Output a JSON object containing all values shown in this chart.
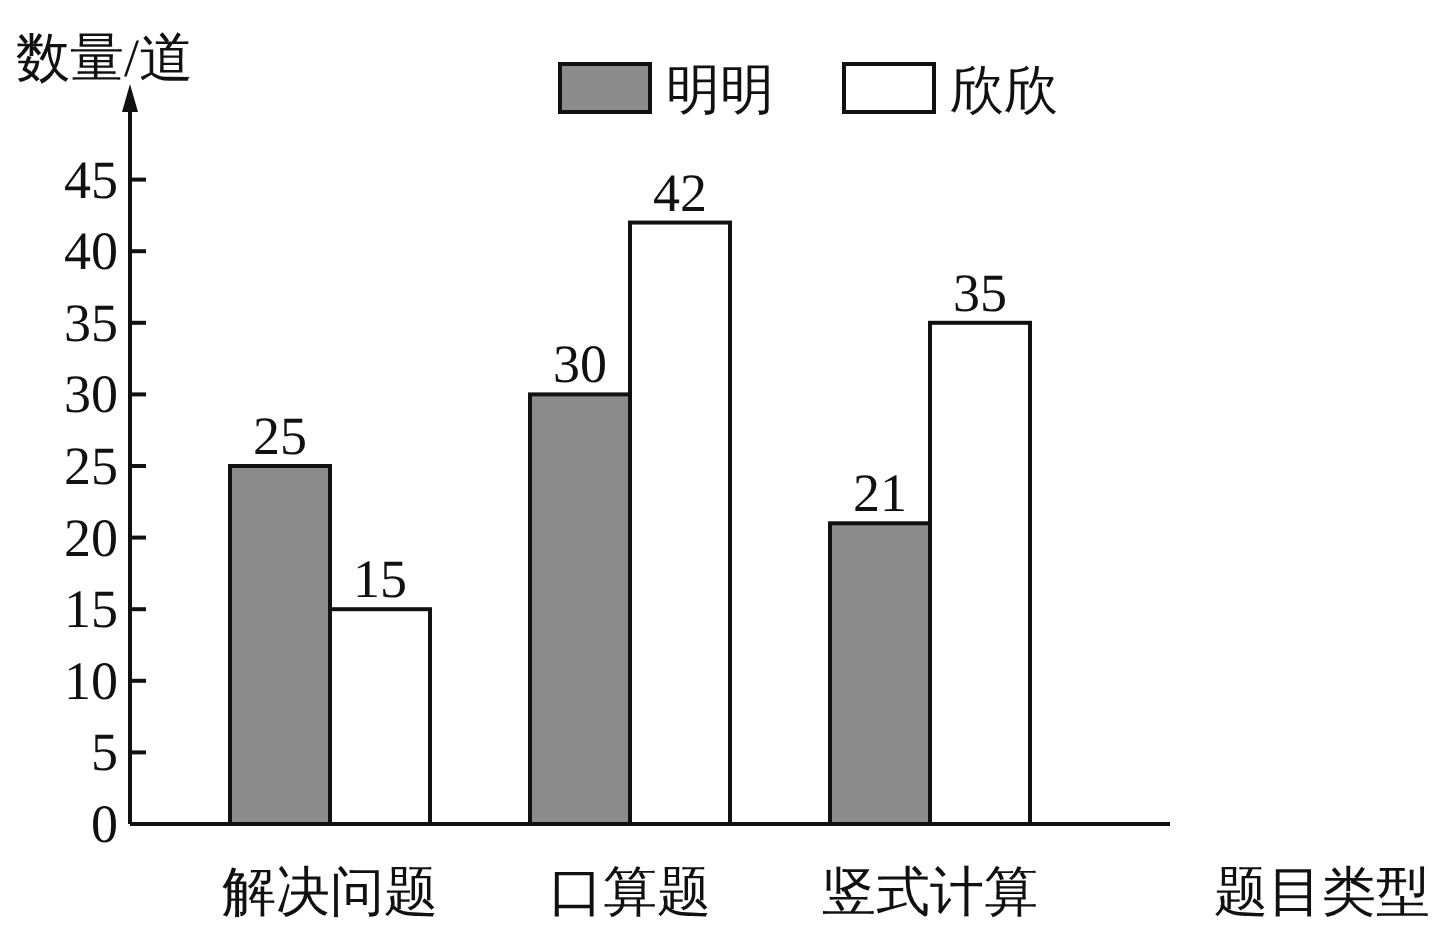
{
  "chart_data": {
    "type": "bar",
    "ylabel": "数量/道",
    "xlabel": "题目类型",
    "categories": [
      "解决问题",
      "口算题",
      "竖式计算"
    ],
    "series": [
      {
        "name": "明明",
        "color": "#8c8c8c",
        "values": [
          25,
          30,
          21
        ]
      },
      {
        "name": "欣欣",
        "color": "#ffffff",
        "values": [
          15,
          42,
          35
        ]
      }
    ],
    "ylim": [
      0,
      50
    ],
    "yticks": [
      0,
      5,
      10,
      15,
      20,
      25,
      30,
      35,
      40,
      45
    ],
    "data_labels": true,
    "legend": "top",
    "grid": false
  }
}
